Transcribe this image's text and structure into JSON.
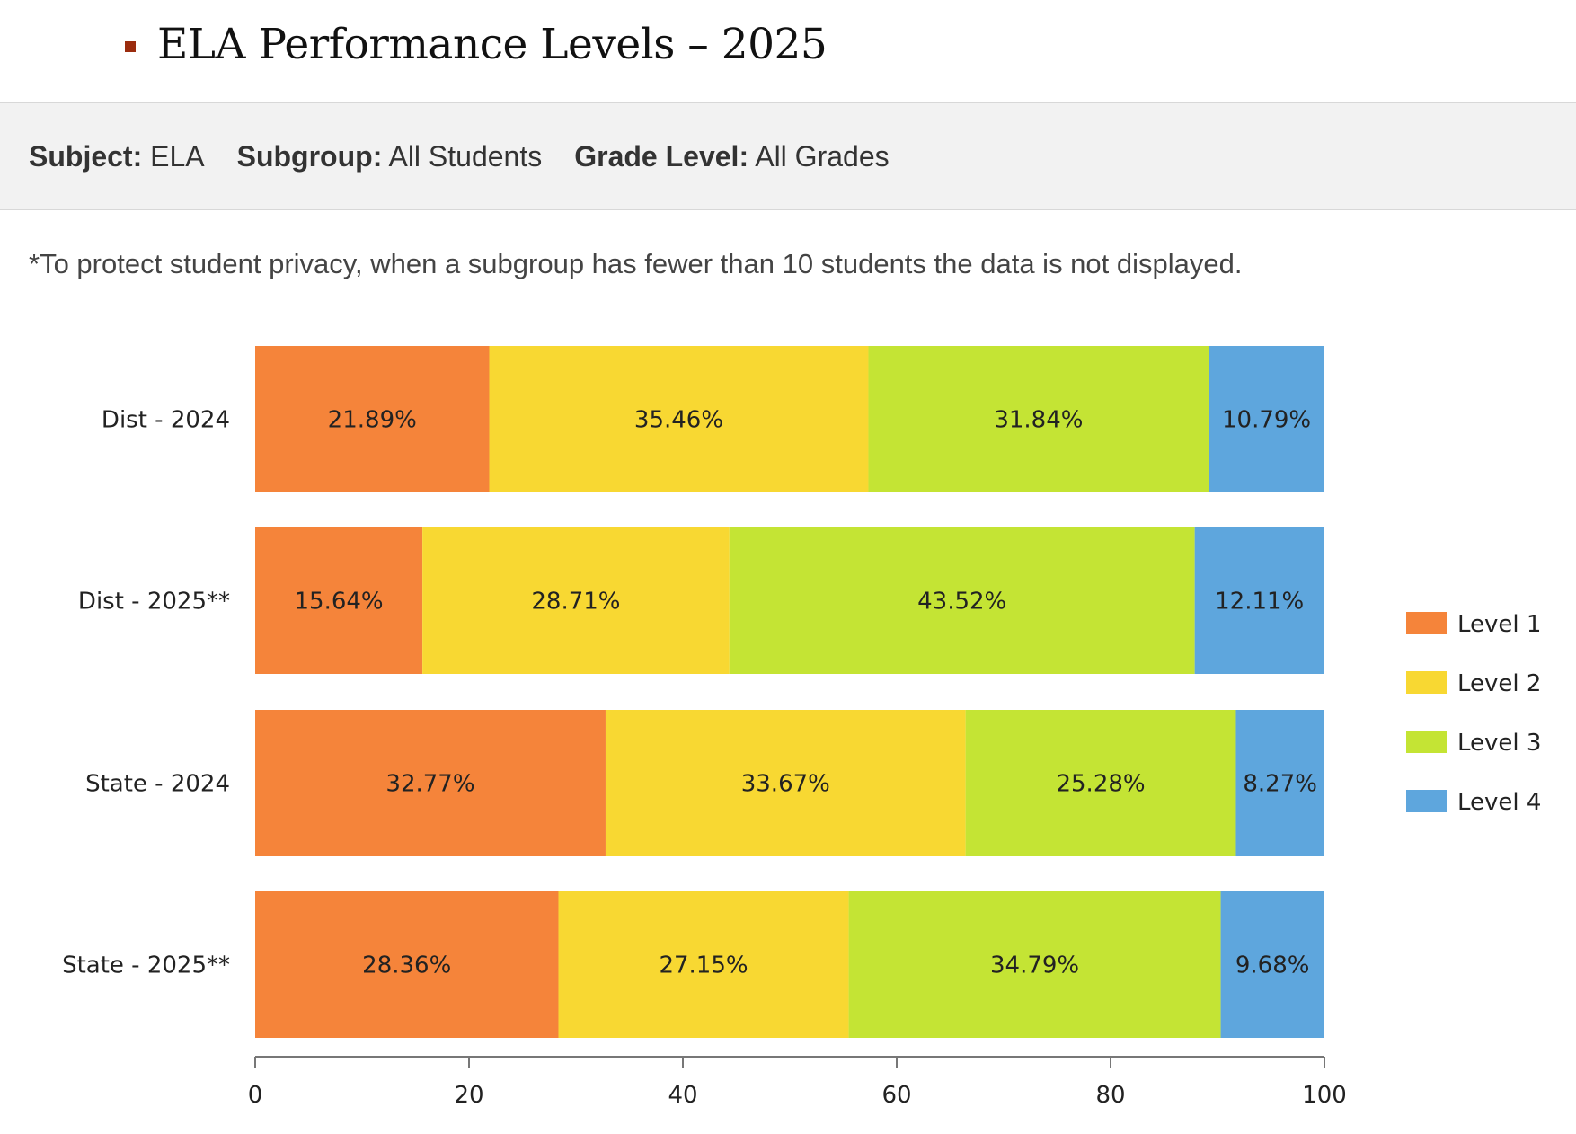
{
  "slide": {
    "title": "ELA Performance Levels – 2025"
  },
  "filters": {
    "subject_label": "Subject:",
    "subject_value": "ELA",
    "subgroup_label": "Subgroup:",
    "subgroup_value": "All Students",
    "grade_label": "Grade Level:",
    "grade_value": "All Grades"
  },
  "note": "*To protect student privacy, when a subgroup has fewer than 10 students the data is not displayed.",
  "colors": {
    "level1": "#f5843a",
    "level2": "#f8d832",
    "level3": "#c4e434",
    "level4": "#5ea6dd",
    "title_bullet": "#9b2c0e",
    "axis": "#777777"
  },
  "chart_data": {
    "type": "bar",
    "orientation": "horizontal",
    "stacked": true,
    "title": "",
    "xlabel": "",
    "ylabel": "",
    "categories": [
      "Dist - 2024",
      "Dist - 2025**",
      "State - 2024",
      "State - 2025**"
    ],
    "series": [
      {
        "name": "Level 1",
        "values": [
          21.89,
          15.64,
          32.77,
          28.36
        ]
      },
      {
        "name": "Level 2",
        "values": [
          35.46,
          28.71,
          33.67,
          27.15
        ]
      },
      {
        "name": "Level 3",
        "values": [
          31.84,
          43.52,
          25.28,
          34.79
        ]
      },
      {
        "name": "Level 4",
        "values": [
          10.79,
          12.11,
          8.27,
          9.68
        ]
      }
    ],
    "data_labels": [
      [
        "21.89%",
        "35.46%",
        "31.84%",
        "10.79%"
      ],
      [
        "15.64%",
        "28.71%",
        "43.52%",
        "12.11%"
      ],
      [
        "32.77%",
        "33.67%",
        "25.28%",
        "8.27%"
      ],
      [
        "28.36%",
        "27.15%",
        "34.79%",
        "9.68%"
      ]
    ],
    "xlim": [
      0,
      100
    ],
    "xticks": [
      0,
      20,
      40,
      60,
      80,
      100
    ],
    "grid": false,
    "legend": "right"
  }
}
